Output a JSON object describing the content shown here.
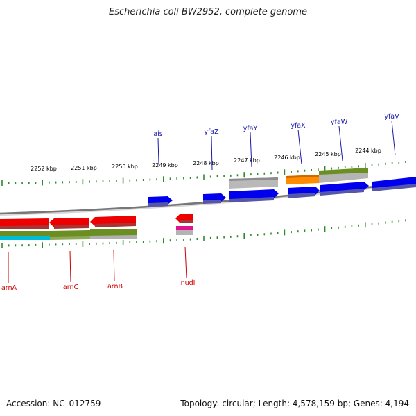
{
  "title": "Escherichia coli BW2952, complete genome",
  "footer": {
    "accession_label": "Accession:",
    "accession": "NC_012759",
    "topology_label": "Topology:",
    "topology": "circular",
    "length_label": "Length:",
    "length": "4,578,159 bp",
    "genes_label": "Genes:",
    "genes": "4,194"
  },
  "scale_labels": [
    "2252 kbp",
    "2251 kbp",
    "2250 kbp",
    "2249 kbp",
    "2248 kbp",
    "2247 kbp",
    "2246 kbp",
    "2245 kbp",
    "2244 kbp"
  ],
  "top_genes": [
    "ais",
    "yfaZ",
    "yfaY",
    "yfaX",
    "yfaW",
    "yfaV"
  ],
  "bottom_genes": [
    "arnA",
    "arnC",
    "arnB",
    "nudI"
  ],
  "colors": {
    "forward_gene": "#0000ee",
    "reverse_gene": "#ee0000",
    "top_label": "#1a1aaa",
    "bottom_label": "#cc0000",
    "backbone": "#888888",
    "ticks": "#2e8b2e",
    "olive": "#6b8e23",
    "orange": "#ff8c00",
    "cyan": "#00bcd4",
    "magenta": "#e0148c",
    "gray_feature": "#b0b0b0"
  }
}
